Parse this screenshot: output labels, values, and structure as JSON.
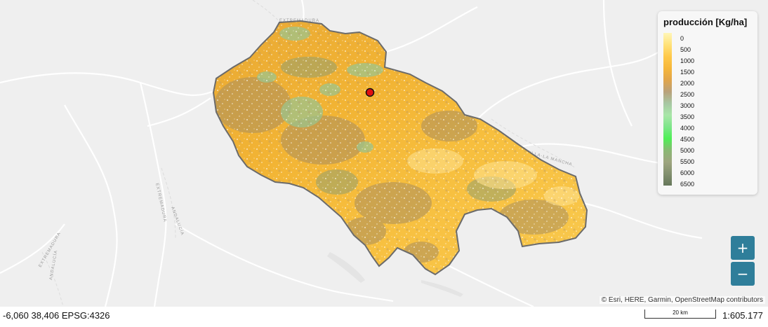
{
  "map": {
    "road_labels": [
      "EXTREMADURA",
      "CASTILLA-LA MANCHA",
      "EXTREMADURA",
      "ANDALUCÍA",
      "EXTREMADURA",
      "ANDALUCÍA"
    ]
  },
  "legend": {
    "title": "producción [Kg/ha]",
    "ticks": [
      "0",
      "500",
      "1000",
      "1500",
      "2000",
      "2500",
      "3000",
      "3500",
      "4000",
      "4500",
      "5000",
      "5500",
      "6000",
      "6500"
    ],
    "colors": [
      "#fff6b8",
      "#ffe27a",
      "#ffc94a",
      "#f6b73a",
      "#e1a54a",
      "#b9a17a",
      "#a7c7a3",
      "#a9e6a8",
      "#7ee58a",
      "#4ef055",
      "#8ab873",
      "#9ea57f",
      "#82906f",
      "#66775b"
    ]
  },
  "controls": {
    "zoom_in": "+",
    "zoom_out": "−"
  },
  "attribution": "© Esri, HERE, Garmin, OpenStreetMap contributors",
  "status": {
    "coordinates": "-6,060 38,406 EPSG:4326",
    "scale_label": "20 km",
    "scale_ratio": "1:605.177"
  }
}
